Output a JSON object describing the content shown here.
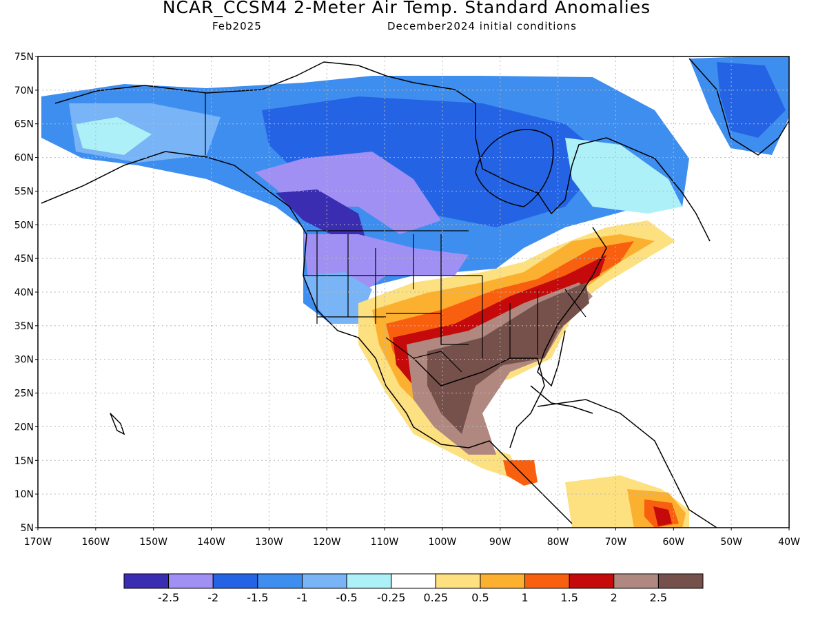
{
  "title": "NCAR_CCSM4 2-Meter Air Temp. Standard Anomalies",
  "subtitle_left": "Feb2025",
  "subtitle_right": "December2024 initial conditions",
  "lat_labels": [
    "75N",
    "70N",
    "65N",
    "60N",
    "55N",
    "50N",
    "45N",
    "40N",
    "35N",
    "30N",
    "25N",
    "20N",
    "15N",
    "10N",
    "5N"
  ],
  "lon_labels": [
    "170W",
    "160W",
    "150W",
    "140W",
    "130W",
    "120W",
    "110W",
    "100W",
    "90W",
    "80W",
    "70W",
    "60W",
    "50W",
    "40W"
  ],
  "colorbar": {
    "colors": [
      "#3b2db2",
      "#a090f4",
      "#2464e4",
      "#3e8ef0",
      "#78b4f6",
      "#aef0f8",
      "#ffffff",
      "#fde080",
      "#fbb030",
      "#f86010",
      "#c40a0a",
      "#b08880",
      "#76504a"
    ],
    "labels": [
      "-2.5",
      "-2",
      "-1.5",
      "-1",
      "-0.5",
      "-0.25",
      "0.25",
      "0.5",
      "1",
      "1.5",
      "2",
      "2.5"
    ]
  }
}
